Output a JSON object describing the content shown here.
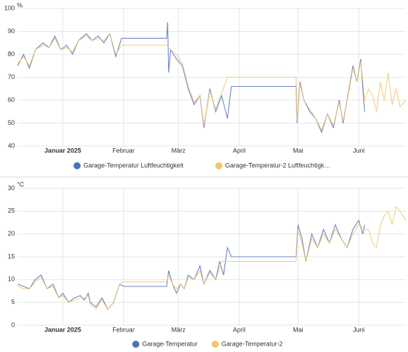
{
  "chart_data": [
    {
      "type": "line",
      "ylabel": "%",
      "grid": true,
      "xlim": [
        -23,
        175
      ],
      "ylim": [
        40,
        100
      ],
      "xticks": [
        {
          "value": 0,
          "label": "Januar 2025"
        },
        {
          "value": 31,
          "label": "Februar"
        },
        {
          "value": 59,
          "label": "März"
        },
        {
          "value": 90,
          "label": "April"
        },
        {
          "value": 120,
          "label": "Mai"
        },
        {
          "value": 151,
          "label": "Juni"
        }
      ],
      "yticks": [
        40,
        50,
        60,
        70,
        80,
        90,
        100
      ],
      "series": [
        {
          "name": "Garage-Temperatur Luftfeuchtigkeit",
          "color": "#4f6fc0",
          "x": [
            -23,
            -20,
            -17,
            -14,
            -10,
            -7,
            -4,
            -1,
            2,
            5,
            8,
            12,
            15,
            18,
            21,
            24,
            27,
            30,
            31,
            53,
            53.5,
            54,
            55,
            58,
            61,
            64,
            67,
            70,
            72,
            75,
            78,
            81,
            84,
            86,
            119,
            119.5,
            121,
            123,
            126,
            129,
            132,
            135,
            138,
            141,
            143,
            146,
            148,
            150,
            152,
            153,
            154
          ],
          "values": [
            75,
            80,
            74,
            82,
            85,
            83,
            88,
            82,
            84,
            80,
            86,
            89,
            86,
            88,
            85,
            89,
            79,
            87,
            87,
            87,
            94,
            72,
            82,
            78,
            75,
            65,
            58,
            62,
            48,
            65,
            55,
            62,
            52,
            66,
            66,
            50,
            68,
            60,
            55,
            52,
            46,
            54,
            48,
            60,
            50,
            65,
            75,
            68,
            78,
            65,
            55
          ]
        },
        {
          "name": "Garage-Temperatur-2 Luftfeuchtigk…",
          "color": "#f2c56b",
          "x": [
            -23,
            -20,
            -17,
            -14,
            -10,
            -7,
            -4,
            -1,
            2,
            5,
            8,
            12,
            15,
            18,
            21,
            24,
            27,
            30,
            31,
            53,
            55,
            58,
            61,
            64,
            67,
            70,
            72,
            75,
            78,
            81,
            84,
            119,
            119.5,
            121,
            123,
            126,
            129,
            132,
            135,
            138,
            141,
            143,
            146,
            148,
            150,
            152,
            154,
            156,
            158,
            160,
            162,
            164,
            166,
            168,
            170,
            172,
            175
          ],
          "values": [
            76,
            79,
            75,
            82,
            84,
            83,
            87,
            82,
            83,
            81,
            86,
            88,
            86,
            87,
            86,
            89,
            80,
            84,
            84,
            84,
            82,
            80,
            76,
            66,
            59,
            62,
            49,
            64,
            56,
            63,
            70,
            70,
            51,
            67,
            60,
            56,
            52,
            47,
            54,
            49,
            59,
            51,
            64,
            74,
            68,
            77,
            60,
            65,
            62,
            55,
            68,
            60,
            72,
            58,
            65,
            57,
            60
          ]
        }
      ]
    },
    {
      "type": "line",
      "ylabel": "°C",
      "grid": true,
      "xlim": [
        -23,
        175
      ],
      "ylim": [
        0,
        30
      ],
      "xticks": [
        {
          "value": 0,
          "label": "Januar 2025"
        },
        {
          "value": 31,
          "label": "Februar"
        },
        {
          "value": 59,
          "label": "März"
        },
        {
          "value": 90,
          "label": "April"
        },
        {
          "value": 120,
          "label": "Mai"
        },
        {
          "value": 151,
          "label": "Juni"
        }
      ],
      "yticks": [
        0,
        5,
        10,
        15,
        20,
        25,
        30
      ],
      "series": [
        {
          "name": "Garage-Temperatur",
          "color": "#4f6fc0",
          "x": [
            -23,
            -20,
            -17,
            -14,
            -11,
            -8,
            -5,
            -2,
            0,
            3,
            6,
            9,
            11,
            13,
            14,
            17,
            20,
            23,
            26,
            29,
            31,
            53,
            54,
            56,
            58,
            60,
            62,
            64,
            67,
            70,
            72,
            75,
            78,
            80,
            82,
            84,
            86,
            119,
            120,
            122,
            124,
            127,
            130,
            133,
            136,
            139,
            142,
            145,
            148,
            151,
            153,
            154
          ],
          "values": [
            9,
            8.5,
            8,
            10,
            11,
            8,
            9,
            6,
            7,
            5,
            6,
            6.5,
            5.5,
            7,
            5,
            4,
            6,
            3.5,
            5,
            9,
            8.5,
            8.5,
            12,
            9,
            7,
            9,
            8,
            11,
            10,
            13,
            9,
            12,
            10,
            14,
            11,
            17,
            15,
            15,
            22,
            19,
            14,
            20,
            17,
            21,
            18,
            22,
            19,
            17,
            21,
            23,
            20,
            22
          ]
        },
        {
          "name": "Garage-Temperatur-2",
          "color": "#f2c56b",
          "x": [
            -23,
            -20,
            -17,
            -14,
            -11,
            -8,
            -5,
            -2,
            0,
            3,
            6,
            9,
            11,
            13,
            14,
            17,
            20,
            23,
            26,
            29,
            31,
            53,
            54,
            56,
            58,
            60,
            62,
            64,
            67,
            70,
            72,
            75,
            78,
            81,
            82,
            119,
            120,
            122,
            124,
            127,
            130,
            133,
            136,
            139,
            142,
            145,
            148,
            151,
            154,
            156,
            158,
            160,
            162,
            164,
            166,
            168,
            170,
            172,
            175
          ],
          "values": [
            8.5,
            8,
            8,
            9.5,
            10.5,
            8,
            8.5,
            6,
            6.5,
            5,
            5.5,
            6,
            6,
            6.5,
            4.5,
            3.5,
            5.5,
            3.5,
            5,
            9,
            9.5,
            9.5,
            11,
            9,
            8,
            9,
            8,
            10.5,
            10,
            12,
            9,
            11.5,
            10,
            14,
            14,
            14,
            21,
            18,
            14,
            19,
            17,
            20,
            18,
            21,
            19,
            17,
            20,
            22,
            21,
            21,
            18,
            17,
            22,
            24,
            25,
            22,
            26,
            25,
            23
          ]
        }
      ]
    }
  ]
}
